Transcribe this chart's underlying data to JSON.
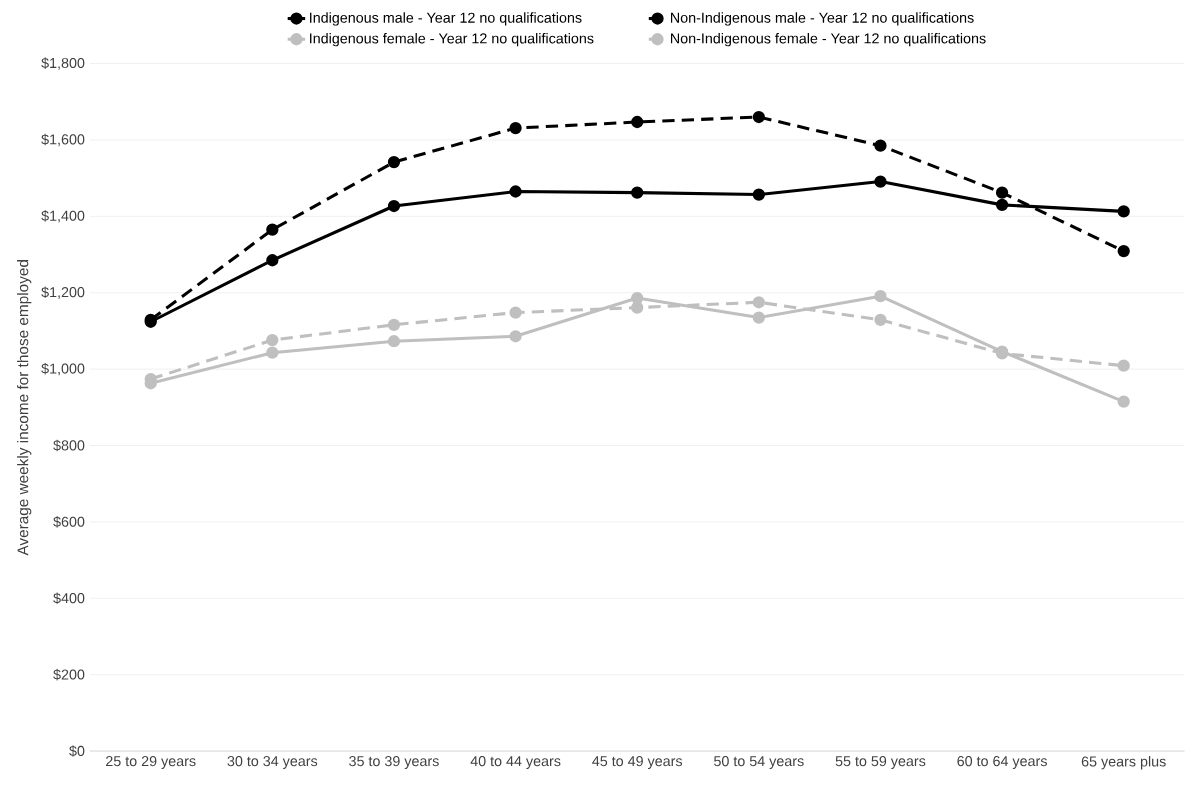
{
  "chart_data": {
    "type": "line",
    "ylabel": "Average weekly income for those employed",
    "categories": [
      "25 to 29 years",
      "30 to 34 years",
      "35 to 39 years",
      "40 to 44 years",
      "45 to 49 years",
      "50 to 54 years",
      "55 to 59 years",
      "60 to 64 years",
      "65 years plus"
    ],
    "series": [
      {
        "name": "Indigenous male - Year 12 no qualifications",
        "color": "#000000",
        "line_style": "solid",
        "values": [
          1124,
          1285,
          1427,
          1465,
          1462,
          1457,
          1491,
          1430,
          1413
        ]
      },
      {
        "name": "Non-Indigenous male - Year 12 no qualifications",
        "color": "#000000",
        "line_style": "dashed",
        "values": [
          1129,
          1365,
          1542,
          1631,
          1647,
          1660,
          1585,
          1462,
          1309
        ]
      },
      {
        "name": "Indigenous female - Year 12 no qualifications",
        "color": "#bfbfbf",
        "line_style": "solid",
        "values": [
          963,
          1043,
          1073,
          1086,
          1186,
          1135,
          1191,
          1046,
          915
        ]
      },
      {
        "name": "Non-Indigenous female - Year 12 no qualifications",
        "color": "#bfbfbf",
        "line_style": "dashed",
        "values": [
          974,
          1076,
          1116,
          1148,
          1161,
          1175,
          1129,
          1041,
          1009
        ]
      }
    ],
    "ylim": [
      0,
      1800
    ],
    "yticks": [
      {
        "value": 0,
        "label": "$0"
      },
      {
        "value": 200,
        "label": "$200"
      },
      {
        "value": 400,
        "label": "$400"
      },
      {
        "value": 600,
        "label": "$600"
      },
      {
        "value": 800,
        "label": "$800"
      },
      {
        "value": 1000,
        "label": "$1,000"
      },
      {
        "value": 1200,
        "label": "$1,200"
      },
      {
        "value": 1400,
        "label": "$1,400"
      },
      {
        "value": 1600,
        "label": "$1,600"
      },
      {
        "value": 1800,
        "label": "$1,800"
      }
    ],
    "grid": "y",
    "legend": "top",
    "marker": "circle"
  }
}
